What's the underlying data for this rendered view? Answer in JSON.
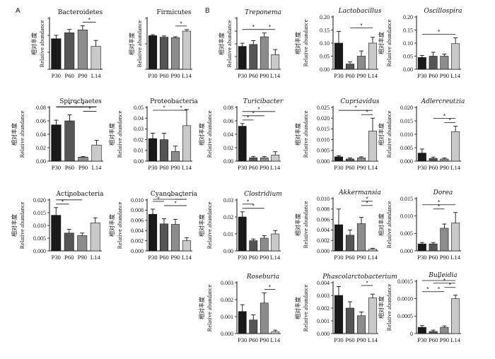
{
  "figure": {
    "panel_labels": [
      "A",
      "B"
    ],
    "ylabel_cn": "相对丰度",
    "ylabel_en": "Relative abundance",
    "colors": [
      "#1a1a1a",
      "#555555",
      "#8c8c8c",
      "#c9c9c9"
    ]
  },
  "chart_data": [
    {
      "type": "bar",
      "title": "Bacteroidetes",
      "italic": false,
      "categories": [
        "P30",
        "P60",
        "P90",
        "L14"
      ],
      "values": [
        0.18,
        0.215,
        0.232,
        0.135
      ],
      "errors": [
        0.02,
        0.02,
        0.025,
        0.035
      ],
      "ylim": [
        0,
        0.3
      ],
      "yticks": [
        "0.0",
        "0.1",
        "0.2",
        "0.3"
      ],
      "show_yticks": false,
      "sig": [
        {
          "from": 2,
          "to": 3,
          "level": 0
        }
      ]
    },
    {
      "type": "bar",
      "title": "Firmicutes",
      "italic": false,
      "categories": [
        "P30",
        "P60",
        "P90",
        "L14"
      ],
      "values": [
        0.66,
        0.63,
        0.62,
        0.75
      ],
      "errors": [
        0.02,
        0.025,
        0.02,
        0.03
      ],
      "ylim": [
        0,
        1.0
      ],
      "yticks": [
        "0",
        "0.5",
        "1.0"
      ],
      "show_yticks": false,
      "sig": [
        {
          "from": 2,
          "to": 3,
          "level": 0
        }
      ]
    },
    {
      "type": "bar",
      "title": "Treponema",
      "italic": true,
      "categories": [
        "P30",
        "P60",
        "P90",
        "L14"
      ],
      "values": [
        0.18,
        0.195,
        0.255,
        0.115
      ],
      "errors": [
        0.025,
        0.03,
        0.03,
        0.04
      ],
      "ylim": [
        0,
        0.4
      ],
      "yticks": [
        "0.0",
        "0.1",
        "0.2",
        "0.3",
        "0.4"
      ],
      "show_yticks": false,
      "sig": [
        {
          "from": 0,
          "to": 2,
          "level": 0
        },
        {
          "from": 2,
          "to": 3,
          "level": 0
        }
      ]
    },
    {
      "type": "bar",
      "title": "Lactobacillus",
      "italic": true,
      "categories": [
        "P30",
        "P60",
        "P90",
        "L14"
      ],
      "values": [
        0.1,
        0.02,
        0.05,
        0.1
      ],
      "errors": [
        0.045,
        0.008,
        0.02,
        0.022
      ],
      "ylim": [
        0,
        0.2
      ],
      "yticks": [
        "0.00",
        "0.05",
        "0.10",
        "0.15",
        "0.20"
      ],
      "show_yticks": true,
      "sig": [
        {
          "from": 1,
          "to": 3,
          "level": 0
        }
      ]
    },
    {
      "type": "bar",
      "title": "Oscillospira",
      "italic": true,
      "categories": [
        "P30",
        "P60",
        "P90",
        "L14"
      ],
      "values": [
        0.045,
        0.05,
        0.05,
        0.098
      ],
      "errors": [
        0.008,
        0.015,
        0.008,
        0.022
      ],
      "ylim": [
        0,
        0.2
      ],
      "yticks": [
        "0.00",
        "0.05",
        "0.10",
        "0.15",
        "0.20"
      ],
      "show_yticks": true,
      "sig": [
        {
          "from": 0,
          "to": 3,
          "level": 0
        }
      ]
    },
    {
      "type": "bar",
      "title": "Spirochaetes",
      "italic": false,
      "categories": [
        "P30",
        "P60",
        "P90",
        "L14"
      ],
      "values": [
        0.054,
        0.06,
        0.006,
        0.024
      ],
      "errors": [
        0.007,
        0.009,
        0.001,
        0.007
      ],
      "ylim": [
        0,
        0.08
      ],
      "yticks": [
        "0.00",
        "0.02",
        "0.04",
        "0.06",
        "0.08"
      ],
      "show_yticks": true,
      "sig": [
        {
          "from": 0,
          "to": 3,
          "level": 2
        },
        {
          "from": 0,
          "to": 2,
          "level": 1
        },
        {
          "from": 1,
          "to": 3,
          "level": 1
        },
        {
          "from": 2,
          "to": 3,
          "level": 0
        }
      ]
    },
    {
      "type": "bar",
      "title": "Proteobacteria",
      "italic": false,
      "categories": [
        "P30",
        "P60",
        "P90",
        "L14"
      ],
      "values": [
        0.021,
        0.02,
        0.009,
        0.033
      ],
      "errors": [
        0.005,
        0.006,
        0.005,
        0.015
      ],
      "ylim": [
        0,
        0.05
      ],
      "yticks": [
        "0.00",
        "0.01",
        "0.02",
        "0.03",
        "0.04",
        "0.05"
      ],
      "show_yticks": true,
      "sig": [
        {
          "from": 0,
          "to": 2,
          "level": 0
        },
        {
          "from": 2,
          "to": 3,
          "level": 0
        }
      ]
    },
    {
      "type": "bar",
      "title": "Turicibacter",
      "italic": true,
      "categories": [
        "P30",
        "P60",
        "P90",
        "L14"
      ],
      "values": [
        0.052,
        0.005,
        0.005,
        0.009
      ],
      "errors": [
        0.004,
        0.002,
        0.002,
        0.005
      ],
      "ylim": [
        0,
        0.08
      ],
      "yticks": [
        "0.00",
        "0.02",
        "0.04",
        "0.06",
        "0.08"
      ],
      "show_yticks": true,
      "sig": [
        {
          "from": 0,
          "to": 3,
          "level": 2
        },
        {
          "from": 0,
          "to": 2,
          "level": 1
        },
        {
          "from": 0,
          "to": 1,
          "level": 0
        }
      ]
    },
    {
      "type": "bar",
      "title": "Cupriavidus",
      "italic": true,
      "categories": [
        "P30",
        "P60",
        "P90",
        "L14"
      ],
      "values": [
        0.002,
        0.001,
        0.0015,
        0.014
      ],
      "errors": [
        0.0005,
        0.0005,
        0.0005,
        0.006
      ],
      "ylim": [
        0,
        0.025
      ],
      "yticks": [
        "0.000",
        "0.005",
        "0.010",
        "0.015",
        "0.020",
        "0.025"
      ],
      "show_yticks": true,
      "sig": [
        {
          "from": 0,
          "to": 3,
          "level": 1
        },
        {
          "from": 2,
          "to": 3,
          "level": 0
        }
      ]
    },
    {
      "type": "bar",
      "title": "Adlercreutzia",
      "italic": true,
      "categories": [
        "P30",
        "P60",
        "P90",
        "L14"
      ],
      "values": [
        0.003,
        0.001,
        0.0008,
        0.011
      ],
      "errors": [
        0.0015,
        0.0005,
        0.0004,
        0.002
      ],
      "ylim": [
        0,
        0.02
      ],
      "yticks": [
        "0.000",
        "0.005",
        "0.010",
        "0.015",
        "0.020"
      ],
      "show_yticks": true,
      "sig": [
        {
          "from": 1,
          "to": 3,
          "level": 1
        },
        {
          "from": 2,
          "to": 3,
          "level": 0
        }
      ]
    },
    {
      "type": "bar",
      "title": "Actinobacteria",
      "italic": false,
      "categories": [
        "P30",
        "P60",
        "P90",
        "L14"
      ],
      "values": [
        0.014,
        0.007,
        0.006,
        0.011
      ],
      "errors": [
        0.003,
        0.0015,
        0.001,
        0.002
      ],
      "ylim": [
        0,
        0.02
      ],
      "yticks": [
        "0.000",
        "0.005",
        "0.010",
        "0.015",
        "0.020"
      ],
      "show_yticks": true,
      "sig": [
        {
          "from": 0,
          "to": 2,
          "level": 1
        },
        {
          "from": 0,
          "to": 1,
          "level": 0
        }
      ]
    },
    {
      "type": "bar",
      "title": "Cyanobacteria",
      "italic": false,
      "categories": [
        "P30",
        "P60",
        "P90",
        "L14"
      ],
      "values": [
        0.0072,
        0.0053,
        0.0052,
        0.002
      ],
      "errors": [
        0.001,
        0.001,
        0.001,
        0.0006
      ],
      "ylim": [
        0,
        0.01
      ],
      "yticks": [
        "0.000",
        "0.002",
        "0.004",
        "0.006",
        "0.008",
        "0.010"
      ],
      "show_yticks": true,
      "sig": [
        {
          "from": 0,
          "to": 3,
          "level": 2
        },
        {
          "from": 0,
          "to": 1,
          "level": 1
        },
        {
          "from": 1,
          "to": 3,
          "level": 0
        },
        {
          "from": 2,
          "to": 3,
          "level": 3
        }
      ]
    },
    {
      "type": "bar",
      "title": "Clostridium",
      "italic": true,
      "categories": [
        "P30",
        "P60",
        "P90",
        "L14"
      ],
      "values": [
        0.02,
        0.006,
        0.0075,
        0.01
      ],
      "errors": [
        0.003,
        0.001,
        0.0015,
        0.002
      ],
      "ylim": [
        0,
        0.03
      ],
      "yticks": [
        "0.00",
        "0.01",
        "0.02",
        "0.03"
      ],
      "show_yticks": true,
      "sig": [
        {
          "from": 0,
          "to": 1,
          "level": 1
        },
        {
          "from": 0,
          "to": 2,
          "level": 0
        }
      ]
    },
    {
      "type": "bar",
      "title": "Akkermansia",
      "italic": true,
      "categories": [
        "P30",
        "P60",
        "P90",
        "L14"
      ],
      "values": [
        0.005,
        0.003,
        0.0052,
        0.0003
      ],
      "errors": [
        0.003,
        0.001,
        0.0012,
        0.0002
      ],
      "ylim": [
        0,
        0.01
      ],
      "yticks": [
        "0.000",
        "0.002",
        "0.004",
        "0.006",
        "0.008",
        "0.010"
      ],
      "show_yticks": true,
      "sig": [
        {
          "from": 2,
          "to": 3,
          "level": 1
        },
        {
          "from": 2,
          "to": 3,
          "level": 0
        }
      ]
    },
    {
      "type": "bar",
      "title": "Dorea",
      "italic": true,
      "categories": [
        "P30",
        "P60",
        "P90",
        "L14"
      ],
      "values": [
        0.002,
        0.002,
        0.0065,
        0.008
      ],
      "errors": [
        0.0004,
        0.0004,
        0.0012,
        0.003
      ],
      "ylim": [
        0,
        0.015
      ],
      "yticks": [
        "0.000",
        "0.005",
        "0.010",
        "0.015"
      ],
      "show_yticks": true,
      "sig": [
        {
          "from": 0,
          "to": 3,
          "level": 1
        },
        {
          "from": 1,
          "to": 2,
          "level": 0
        }
      ]
    },
    {
      "type": "bar",
      "title": "Roseburia",
      "italic": true,
      "categories": [
        "P30",
        "P60",
        "P90",
        "L14"
      ],
      "values": [
        0.0013,
        0.0008,
        0.0018,
        0.0001
      ],
      "errors": [
        0.0004,
        0.0003,
        0.0006,
        0.0001
      ],
      "ylim": [
        0,
        0.003
      ],
      "yticks": [
        "0.000",
        "0.001",
        "0.002",
        "0.003"
      ],
      "show_yticks": true,
      "sig": [
        {
          "from": 2,
          "to": 3,
          "level": 0
        }
      ]
    },
    {
      "type": "bar",
      "title": "Phascolarctobacterium",
      "italic": true,
      "categories": [
        "P30",
        "P60",
        "P90",
        "L14"
      ],
      "values": [
        0.003,
        0.002,
        0.0014,
        0.0028
      ],
      "errors": [
        0.0007,
        0.0005,
        0.0003,
        0.0003
      ],
      "ylim": [
        0,
        0.004
      ],
      "yticks": [
        "0.000",
        "0.001",
        "0.002",
        "0.003",
        "0.004"
      ],
      "show_yticks": true,
      "sig": [
        {
          "from": 2,
          "to": 3,
          "level": 0
        }
      ]
    },
    {
      "type": "bar",
      "title": "Bulleidia",
      "italic": true,
      "categories": [
        "P30",
        "P60",
        "P90",
        "L14"
      ],
      "values": [
        0.00018,
        6e-05,
        0.00018,
        0.001
      ],
      "errors": [
        5e-05,
        4e-05,
        4e-05,
        0.0001
      ],
      "ylim": [
        0,
        0.0015
      ],
      "yticks": [
        "0",
        "0.0005",
        "0.0010",
        "0.0015"
      ],
      "show_yticks": true,
      "sig": [
        {
          "from": 0,
          "to": 3,
          "level": 3
        },
        {
          "from": 1,
          "to": 3,
          "level": 2
        },
        {
          "from": 2,
          "to": 3,
          "level": 1
        },
        {
          "from": 0,
          "to": 1,
          "level": 0
        },
        {
          "from": 1,
          "to": 2,
          "level": 0
        }
      ]
    }
  ]
}
